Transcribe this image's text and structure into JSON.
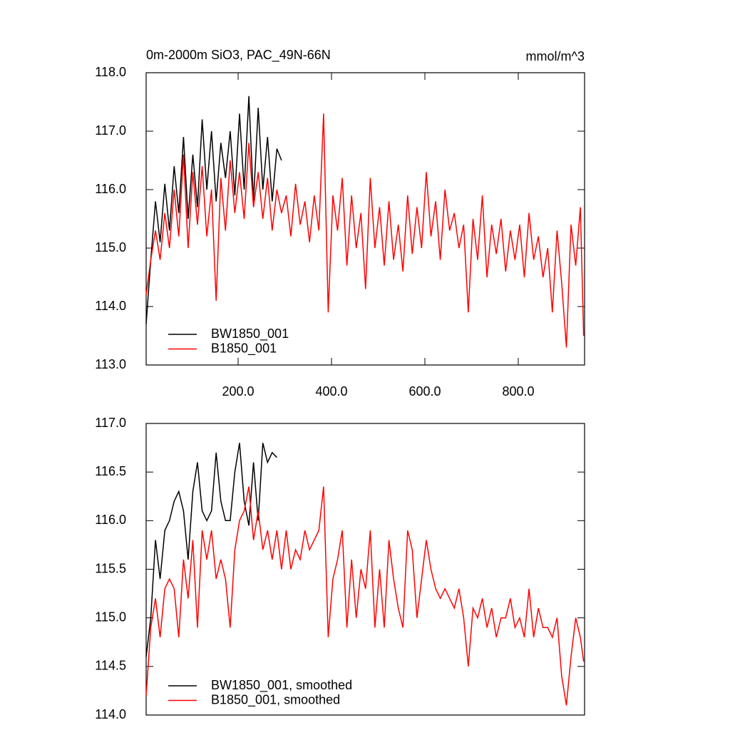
{
  "chart_data": [
    {
      "type": "line",
      "title": "0m-2000m SiO3, PAC_49N-66N",
      "subtitle": "mmol/m^3",
      "xlim": [
        3,
        942
      ],
      "ylim": [
        113,
        118
      ],
      "xticks": [
        {
          "value": 200,
          "label": "200.0"
        },
        {
          "value": 400,
          "label": "400.0"
        },
        {
          "value": 600,
          "label": "600.0"
        },
        {
          "value": 800,
          "label": "800.0"
        }
      ],
      "yticks": [
        {
          "value": 113,
          "label": "113.0"
        },
        {
          "value": 114,
          "label": "114.0"
        },
        {
          "value": 115,
          "label": "115.0"
        },
        {
          "value": 116,
          "label": "116.0"
        },
        {
          "value": 117,
          "label": "117.0"
        },
        {
          "value": 118,
          "label": "118.0"
        }
      ],
      "series": [
        {
          "name": "BW1850_001",
          "color": "#000000",
          "x": [
            3,
            13,
            23,
            33,
            43,
            53,
            63,
            73,
            83,
            93,
            103,
            113,
            123,
            133,
            143,
            153,
            163,
            173,
            183,
            193,
            203,
            213,
            223,
            233,
            243,
            253,
            263,
            273,
            283,
            293
          ],
          "values": [
            113.7,
            114.8,
            115.8,
            115.1,
            116.1,
            115.3,
            116.4,
            115.6,
            116.9,
            115.5,
            116.6,
            115.7,
            117.2,
            116.0,
            117.0,
            115.8,
            116.8,
            116.2,
            117.0,
            115.9,
            117.3,
            116.0,
            117.6,
            115.8,
            117.4,
            116.0,
            116.9,
            115.8,
            116.7,
            116.5
          ]
        },
        {
          "name": "B1850_001",
          "color": "#ff0000",
          "x": [
            3,
            13,
            23,
            33,
            43,
            53,
            63,
            73,
            83,
            93,
            103,
            113,
            123,
            133,
            143,
            153,
            163,
            173,
            183,
            193,
            203,
            213,
            223,
            233,
            243,
            253,
            263,
            273,
            283,
            293,
            303,
            313,
            323,
            333,
            343,
            353,
            363,
            373,
            383,
            393,
            403,
            413,
            423,
            433,
            443,
            453,
            463,
            473,
            483,
            493,
            503,
            513,
            523,
            533,
            543,
            553,
            563,
            573,
            583,
            593,
            603,
            613,
            623,
            633,
            643,
            653,
            663,
            673,
            683,
            693,
            703,
            713,
            723,
            733,
            743,
            753,
            763,
            773,
            783,
            793,
            803,
            813,
            823,
            833,
            843,
            853,
            863,
            873,
            883,
            893,
            903,
            913,
            923,
            933,
            940
          ],
          "values": [
            114.2,
            114.8,
            115.3,
            114.8,
            115.6,
            115.0,
            116.0,
            115.2,
            116.6,
            115.0,
            116.3,
            115.4,
            116.4,
            115.2,
            116.0,
            114.1,
            116.2,
            115.3,
            116.5,
            115.6,
            116.3,
            115.5,
            116.8,
            115.7,
            116.3,
            115.5,
            116.2,
            115.3,
            116.0,
            115.6,
            115.9,
            115.2,
            116.1,
            115.4,
            115.8,
            115.1,
            115.9,
            115.3,
            117.3,
            113.9,
            115.9,
            115.3,
            116.2,
            114.7,
            115.9,
            115.0,
            115.6,
            114.3,
            116.2,
            115.0,
            115.7,
            114.7,
            115.8,
            114.8,
            115.4,
            114.6,
            115.9,
            114.9,
            115.7,
            115.0,
            116.3,
            115.2,
            115.8,
            114.8,
            116.0,
            115.3,
            115.6,
            115.0,
            115.4,
            113.9,
            115.5,
            114.8,
            115.9,
            114.5,
            115.4,
            114.9,
            115.5,
            114.6,
            115.3,
            114.8,
            115.4,
            114.5,
            115.6,
            114.8,
            115.2,
            114.5,
            115.0,
            113.9,
            115.3,
            114.4,
            113.3,
            115.4,
            114.7,
            115.7,
            113.5
          ]
        }
      ]
    },
    {
      "type": "line",
      "xlim": [
        3,
        942
      ],
      "ylim": [
        114,
        117
      ],
      "yticks": [
        {
          "value": 114,
          "label": "114.0"
        },
        {
          "value": 114.5,
          "label": "114.5"
        },
        {
          "value": 115,
          "label": "115.0"
        },
        {
          "value": 115.5,
          "label": "115.5"
        },
        {
          "value": 116,
          "label": "116.0"
        },
        {
          "value": 116.5,
          "label": "116.5"
        },
        {
          "value": 117,
          "label": "117.0"
        }
      ],
      "series": [
        {
          "name": "BW1850_001, smoothed",
          "color": "#000000",
          "x": [
            3,
            13,
            23,
            33,
            43,
            53,
            63,
            73,
            83,
            93,
            103,
            113,
            123,
            133,
            143,
            153,
            163,
            173,
            183,
            193,
            203,
            213,
            223,
            233,
            243,
            253,
            263,
            273,
            283
          ],
          "values": [
            114.6,
            115.0,
            115.8,
            115.4,
            115.9,
            116.0,
            116.2,
            116.3,
            116.1,
            115.6,
            116.3,
            116.6,
            116.1,
            116.0,
            116.1,
            116.7,
            116.2,
            116.0,
            116.0,
            116.5,
            116.8,
            116.2,
            115.95,
            116.6,
            116.0,
            116.8,
            116.6,
            116.7,
            116.65
          ]
        },
        {
          "name": "B1850_001, smoothed",
          "color": "#ff0000",
          "x": [
            3,
            13,
            23,
            33,
            43,
            53,
            63,
            73,
            83,
            93,
            103,
            113,
            123,
            133,
            143,
            153,
            163,
            173,
            183,
            193,
            203,
            213,
            223,
            233,
            243,
            253,
            263,
            273,
            283,
            293,
            303,
            313,
            323,
            333,
            343,
            353,
            363,
            373,
            383,
            393,
            403,
            413,
            423,
            433,
            443,
            453,
            463,
            473,
            483,
            493,
            503,
            513,
            523,
            533,
            543,
            553,
            563,
            573,
            583,
            593,
            603,
            613,
            623,
            633,
            643,
            653,
            663,
            673,
            683,
            693,
            703,
            713,
            723,
            733,
            743,
            753,
            763,
            773,
            783,
            793,
            803,
            813,
            823,
            833,
            843,
            853,
            863,
            873,
            883,
            893,
            903,
            913,
            923,
            933,
            940
          ],
          "values": [
            114.2,
            114.9,
            115.2,
            114.8,
            115.3,
            115.4,
            115.3,
            114.8,
            115.6,
            115.2,
            115.8,
            114.9,
            115.9,
            115.6,
            115.9,
            115.4,
            115.6,
            115.4,
            114.9,
            115.7,
            116.0,
            116.1,
            116.35,
            115.8,
            116.1,
            115.7,
            115.9,
            115.6,
            115.9,
            115.5,
            115.9,
            115.5,
            115.7,
            115.6,
            115.9,
            115.7,
            115.8,
            115.9,
            116.35,
            114.8,
            115.4,
            115.6,
            115.9,
            114.9,
            115.6,
            115.0,
            115.5,
            115.3,
            115.9,
            114.9,
            115.5,
            114.9,
            115.8,
            115.4,
            115.1,
            114.9,
            115.9,
            115.7,
            115.0,
            115.4,
            115.8,
            115.5,
            115.3,
            115.2,
            115.3,
            115.2,
            115.1,
            115.3,
            115.0,
            114.5,
            115.1,
            115.0,
            115.2,
            114.9,
            115.1,
            114.8,
            115.0,
            115.0,
            115.2,
            114.9,
            115.0,
            114.8,
            115.3,
            114.8,
            115.1,
            114.9,
            114.9,
            114.8,
            115.0,
            114.4,
            114.1,
            114.6,
            115.0,
            114.8,
            114.55
          ]
        }
      ]
    }
  ]
}
